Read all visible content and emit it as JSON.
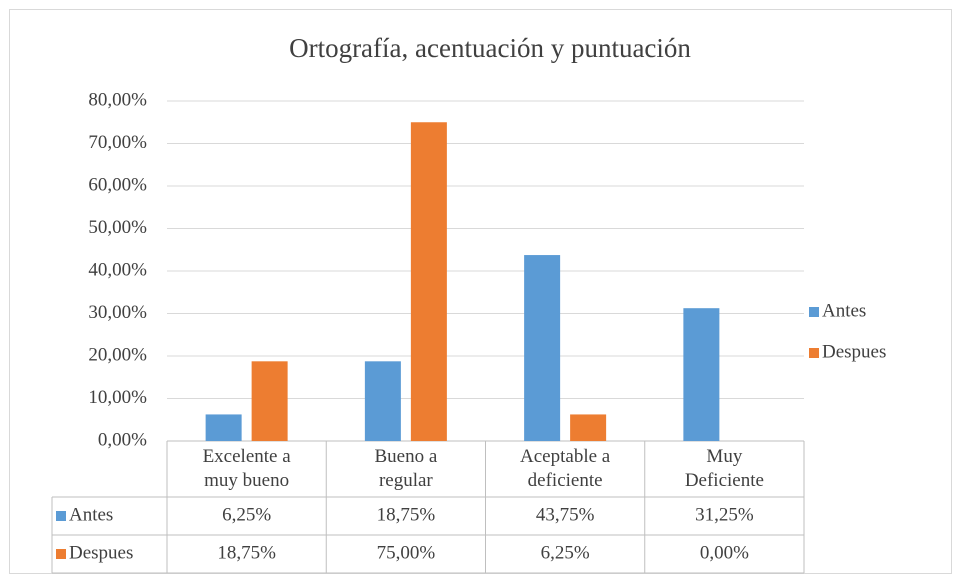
{
  "chart_data": {
    "type": "bar",
    "title": "Ortografía, acentuación y puntuación",
    "categories": [
      "Excelente a\nmuy bueno",
      "Bueno a\nregular",
      "Aceptable a\ndeficiente",
      "Muy\nDeficiente"
    ],
    "series": [
      {
        "name": "Antes",
        "color": "#5b9bd5",
        "values": [
          6.25,
          18.75,
          43.75,
          31.25
        ],
        "value_labels": [
          "6,25%",
          "18,75%",
          "43,75%",
          "31,25%"
        ]
      },
      {
        "name": "Despues",
        "color": "#ed7d31",
        "values": [
          18.75,
          75,
          6.25,
          0
        ],
        "value_labels": [
          "18,75%",
          "75,00%",
          "6,25%",
          "0,00%"
        ]
      }
    ],
    "ylim": [
      0,
      80
    ],
    "yticks": [
      {
        "value": 0,
        "label": "0,00%"
      },
      {
        "value": 10,
        "label": "10,00%"
      },
      {
        "value": 20,
        "label": "20,00%"
      },
      {
        "value": 30,
        "label": "30,00%"
      },
      {
        "value": 40,
        "label": "40,00%"
      },
      {
        "value": 50,
        "label": "50,00%"
      },
      {
        "value": 60,
        "label": "60,00%"
      },
      {
        "value": 70,
        "label": "70,00%"
      },
      {
        "value": 80,
        "label": "80,00%"
      }
    ],
    "grid": true,
    "legend": "right"
  }
}
